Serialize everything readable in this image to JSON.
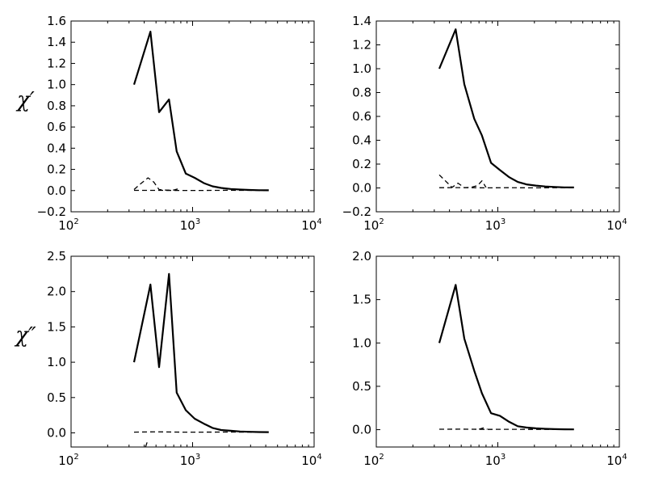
{
  "chart_data": [
    {
      "type": "line",
      "ylabel": "χ′",
      "xscale": "log",
      "xlim": [
        100,
        10000
      ],
      "ylim": [
        -0.2,
        1.6
      ],
      "yticks": [
        -0.2,
        0.0,
        0.2,
        0.4,
        0.6,
        0.8,
        1.0,
        1.2,
        1.4,
        1.6
      ],
      "ytick_labels": [
        "−0.2",
        "0.0",
        "0.2",
        "0.4",
        "0.6",
        "0.8",
        "1.0",
        "1.2",
        "1.4",
        "1.6"
      ],
      "xticks": [
        100,
        1000,
        10000
      ],
      "xtick_labels": [
        {
          "base": "10",
          "exp": "2"
        },
        {
          "base": "10",
          "exp": "3"
        },
        {
          "base": "10",
          "exp": "4"
        }
      ],
      "grid": false,
      "series": [
        {
          "style": "solid",
          "x": [
            330,
            450,
            530,
            640,
            740,
            880,
            1040,
            1240,
            1460,
            1720,
            2060,
            2460,
            2950,
            3530,
            4230
          ],
          "y": [
            1.0,
            1.5,
            0.74,
            0.86,
            0.37,
            0.16,
            0.12,
            0.07,
            0.04,
            0.025,
            0.015,
            0.01,
            0.006,
            0.004,
            0.003
          ]
        },
        {
          "style": "dashed",
          "x": [
            330,
            370,
            430,
            480,
            530,
            580,
            640,
            700,
            780
          ],
          "y": [
            0.01,
            0.06,
            0.12,
            0.08,
            0.01,
            0.005,
            0.004,
            0.005,
            0.02
          ]
        },
        {
          "style": "dashed",
          "x": [
            330,
            500,
            800,
            1200,
            2000,
            3000,
            4230
          ],
          "y": [
            0.002,
            0.002,
            0.001,
            0.001,
            0.003,
            0.002,
            0.001
          ]
        }
      ]
    },
    {
      "type": "line",
      "ylabel": "",
      "xscale": "log",
      "xlim": [
        100,
        10000
      ],
      "ylim": [
        -0.2,
        1.4
      ],
      "yticks": [
        -0.2,
        0.0,
        0.2,
        0.4,
        0.6,
        0.8,
        1.0,
        1.2,
        1.4
      ],
      "ytick_labels": [
        "−0.2",
        "0.0",
        "0.2",
        "0.4",
        "0.6",
        "0.8",
        "1.0",
        "1.2",
        "1.4"
      ],
      "xticks": [
        100,
        1000,
        10000
      ],
      "xtick_labels": [
        {
          "base": "10",
          "exp": "2"
        },
        {
          "base": "10",
          "exp": "3"
        },
        {
          "base": "10",
          "exp": "4"
        }
      ],
      "grid": false,
      "series": [
        {
          "style": "solid",
          "x": [
            330,
            450,
            530,
            640,
            740,
            880,
            1040,
            1240,
            1460,
            1720,
            2060,
            2460,
            2950,
            3530,
            4230
          ],
          "y": [
            1.0,
            1.33,
            0.87,
            0.58,
            0.44,
            0.21,
            0.15,
            0.09,
            0.05,
            0.03,
            0.02,
            0.012,
            0.008,
            0.005,
            0.004
          ]
        },
        {
          "style": "dashed",
          "x": [
            330,
            370,
            420,
            470,
            530,
            600,
            680,
            740,
            800
          ],
          "y": [
            0.11,
            0.06,
            0.005,
            0.04,
            0.003,
            0.005,
            0.02,
            0.06,
            0.005
          ]
        },
        {
          "style": "dashed",
          "x": [
            330,
            500,
            800,
            1200,
            2000,
            3000,
            4230
          ],
          "y": [
            0.002,
            0.003,
            0.001,
            0.002,
            0.001,
            0.002,
            0.001
          ]
        }
      ]
    },
    {
      "type": "line",
      "ylabel": "χ″",
      "xscale": "log",
      "xlim": [
        100,
        10000
      ],
      "ylim": [
        -0.2,
        2.5
      ],
      "yticks": [
        0.0,
        0.5,
        1.0,
        1.5,
        2.0,
        2.5
      ],
      "ytick_labels": [
        "0.0",
        "0.5",
        "1.0",
        "1.5",
        "2.0",
        "2.5"
      ],
      "xticks": [
        100,
        1000,
        10000
      ],
      "xtick_labels": [
        {
          "base": "10",
          "exp": "2"
        },
        {
          "base": "10",
          "exp": "3"
        },
        {
          "base": "10",
          "exp": "4"
        }
      ],
      "grid": false,
      "series": [
        {
          "style": "solid",
          "x": [
            330,
            450,
            530,
            640,
            740,
            880,
            1040,
            1240,
            1460,
            1720,
            2060,
            2460,
            2950,
            3530,
            4230
          ],
          "y": [
            1.0,
            2.1,
            0.93,
            2.25,
            0.57,
            0.32,
            0.2,
            0.13,
            0.07,
            0.04,
            0.03,
            0.02,
            0.015,
            0.012,
            0.01
          ]
        },
        {
          "style": "dashed",
          "x": [
            330,
            500,
            800,
            1200,
            2000,
            3000,
            4230
          ],
          "y": [
            0.01,
            0.015,
            0.01,
            0.01,
            0.012,
            0.01,
            0.008
          ]
        },
        {
          "style": "dashed",
          "x": [
            410,
            425
          ],
          "y": [
            -0.2,
            -0.12
          ]
        }
      ]
    },
    {
      "type": "line",
      "ylabel": "",
      "xscale": "log",
      "xlim": [
        100,
        10000
      ],
      "ylim": [
        -0.2,
        2.0
      ],
      "yticks": [
        0.0,
        0.5,
        1.0,
        1.5,
        2.0
      ],
      "ytick_labels": [
        "0.0",
        "0.5",
        "1.0",
        "1.5",
        "2.0"
      ],
      "xticks": [
        100,
        1000,
        10000
      ],
      "xtick_labels": [
        {
          "base": "10",
          "exp": "2"
        },
        {
          "base": "10",
          "exp": "3"
        },
        {
          "base": "10",
          "exp": "4"
        }
      ],
      "grid": false,
      "series": [
        {
          "style": "solid",
          "x": [
            330,
            450,
            530,
            640,
            740,
            880,
            1040,
            1240,
            1460,
            1720,
            2060,
            2460,
            2950,
            3530,
            4230
          ],
          "y": [
            1.0,
            1.67,
            1.05,
            0.68,
            0.42,
            0.19,
            0.16,
            0.09,
            0.04,
            0.025,
            0.015,
            0.01,
            0.006,
            0.004,
            0.003
          ]
        },
        {
          "style": "dashed",
          "x": [
            330,
            500,
            800,
            1200,
            2000,
            3000,
            4230
          ],
          "y": [
            0.005,
            0.006,
            0.003,
            0.004,
            0.003,
            0.002,
            0.002
          ]
        },
        {
          "style": "dashed",
          "x": [
            700,
            760,
            820
          ],
          "y": [
            0.005,
            0.02,
            0.005
          ]
        }
      ]
    }
  ]
}
